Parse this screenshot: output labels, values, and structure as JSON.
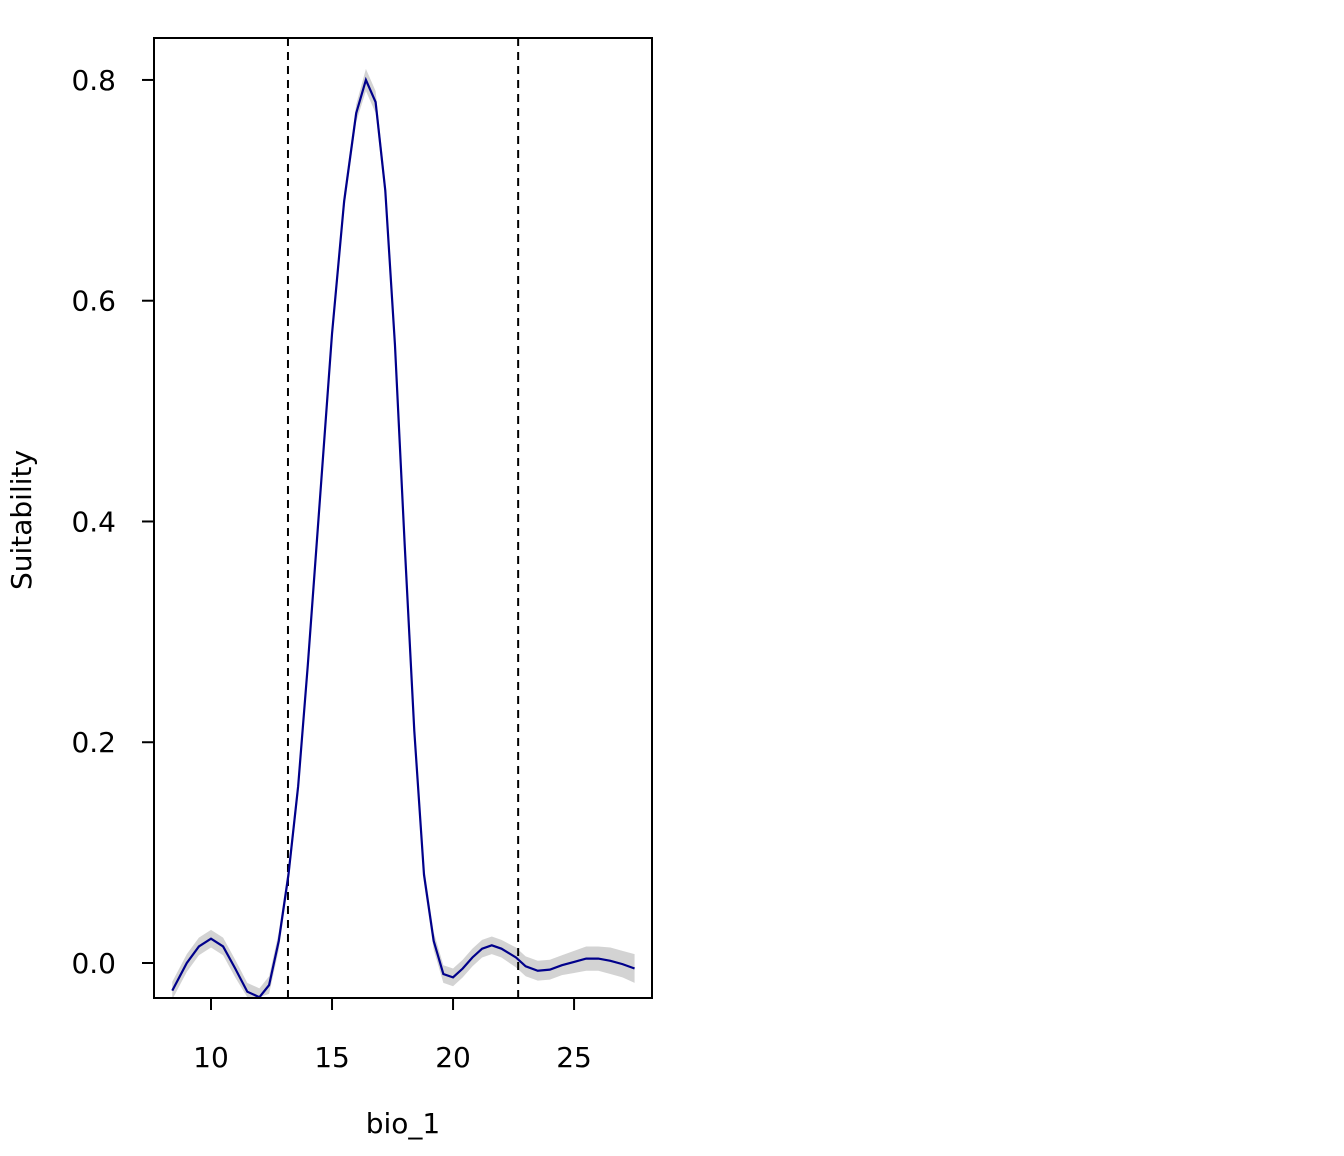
{
  "chart_data": {
    "type": "line",
    "xlabel": "bio_1",
    "ylabel": "Suitability",
    "x": [
      8.4,
      9.0,
      9.5,
      10.0,
      10.5,
      11.0,
      11.5,
      12.0,
      12.4,
      12.8,
      13.2,
      13.6,
      14.0,
      14.5,
      15.0,
      15.5,
      16.0,
      16.4,
      16.8,
      17.2,
      17.6,
      18.0,
      18.4,
      18.8,
      19.2,
      19.6,
      20.0,
      20.4,
      20.8,
      21.2,
      21.6,
      22.0,
      22.6,
      23.0,
      23.5,
      24.0,
      24.5,
      25.0,
      25.5,
      26.0,
      26.5,
      27.0,
      27.5
    ],
    "series": [
      {
        "color": "#00008b",
        "values": [
          -0.025,
          0.0,
          0.015,
          0.022,
          0.015,
          -0.005,
          -0.026,
          -0.031,
          -0.02,
          0.02,
          0.08,
          0.16,
          0.27,
          0.42,
          0.57,
          0.69,
          0.77,
          0.8,
          0.78,
          0.7,
          0.56,
          0.38,
          0.21,
          0.08,
          0.02,
          -0.01,
          -0.013,
          -0.005,
          0.005,
          0.013,
          0.016,
          0.013,
          0.005,
          -0.003,
          -0.007,
          -0.006,
          -0.002,
          0.001,
          0.004,
          0.004,
          0.002,
          -0.001,
          -0.005
        ]
      }
    ],
    "band": {
      "color": "#d3d3d3",
      "lower": [
        -0.033,
        -0.008,
        0.007,
        0.014,
        0.007,
        -0.013,
        -0.031,
        -0.031,
        -0.028,
        0.012,
        0.072,
        0.152,
        0.262,
        0.412,
        0.562,
        0.682,
        0.762,
        0.79,
        0.77,
        0.692,
        0.552,
        0.372,
        0.202,
        0.072,
        0.012,
        -0.018,
        -0.021,
        -0.013,
        -0.003,
        0.005,
        0.008,
        0.005,
        -0.004,
        -0.012,
        -0.016,
        -0.015,
        -0.011,
        -0.009,
        -0.007,
        -0.007,
        -0.01,
        -0.013,
        -0.018
      ],
      "upper": [
        -0.017,
        0.008,
        0.023,
        0.03,
        0.023,
        0.003,
        -0.018,
        -0.023,
        -0.012,
        0.028,
        0.088,
        0.168,
        0.278,
        0.428,
        0.578,
        0.698,
        0.778,
        0.81,
        0.79,
        0.708,
        0.568,
        0.388,
        0.218,
        0.088,
        0.028,
        -0.002,
        -0.005,
        0.003,
        0.013,
        0.021,
        0.024,
        0.021,
        0.014,
        0.006,
        0.002,
        0.003,
        0.007,
        0.011,
        0.015,
        0.015,
        0.014,
        0.011,
        0.008
      ]
    },
    "vlines": [
      13.18,
      22.69
    ],
    "xlim": [
      7.645,
      28.22
    ],
    "ylim": [
      -0.0317,
      0.838
    ],
    "xticks": [
      10,
      15,
      20,
      25
    ],
    "yticks": [
      {
        "value": 0,
        "label": "0.0"
      },
      0.2,
      0.4,
      0.6,
      0.8
    ]
  }
}
